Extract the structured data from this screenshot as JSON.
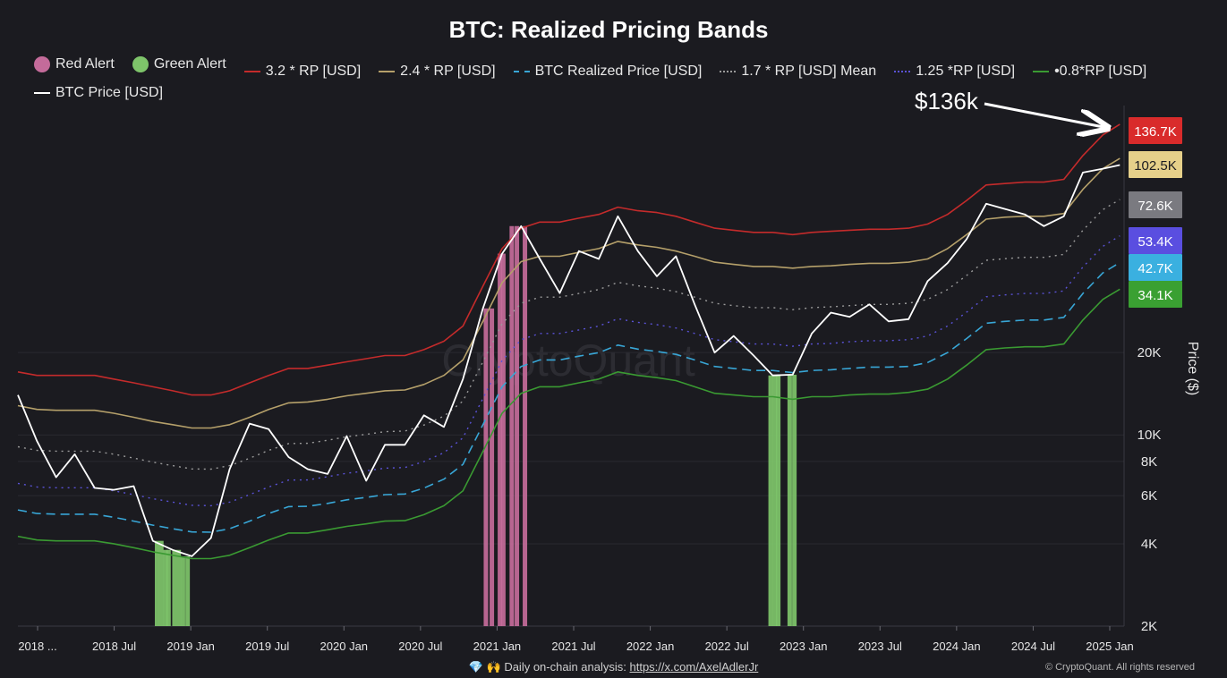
{
  "colors": {
    "background": "#1b1b20",
    "red_alert": "#c46b9a",
    "green_alert": "#7ec46a",
    "band_32": "#c42b2b",
    "band_24": "#b5a06a",
    "realized": "#38a6d6",
    "mean": "#9a9a9a",
    "band_125": "#5a52d6",
    "band_08": "#3a9a32",
    "price": "#ffffff"
  },
  "chart_data": {
    "type": "line",
    "title": "BTC: Realized Pricing Bands",
    "ylabel": "Price ($)",
    "y_scale": "log",
    "ylim": [
      2000,
      160000
    ],
    "xlim": [
      "2018-01-01",
      "2025-02-20"
    ],
    "x_tick_labels": [
      "2018 ...",
      "2018 Jul",
      "2019 Jan",
      "2019 Jul",
      "2020 Jan",
      "2020 Jul",
      "2021 Jan",
      "2021 Jul",
      "2022 Jan",
      "2022 Jul",
      "2023 Jan",
      "2023 Jul",
      "2024 Jan",
      "2024 Jul",
      "2025 Jan"
    ],
    "y_ticks": [
      {
        "label": "2K",
        "value": 2000
      },
      {
        "label": "4K",
        "value": 4000
      },
      {
        "label": "6K",
        "value": 6000
      },
      {
        "label": "8K",
        "value": 8000
      },
      {
        "label": "10K",
        "value": 10000
      },
      {
        "label": "20K",
        "value": 20000
      }
    ],
    "legend_position": "top",
    "legend": [
      {
        "name": "Red Alert",
        "kind": "dot",
        "color": "#c46b9a"
      },
      {
        "name": "Green Alert",
        "kind": "dot",
        "color": "#7ec46a"
      },
      {
        "name": "3.2 * RP [USD]",
        "kind": "line",
        "color": "#c42b2b"
      },
      {
        "name": "2.4 * RP [USD]",
        "kind": "line",
        "color": "#b5a06a"
      },
      {
        "name": "BTC Realized Price [USD]",
        "kind": "dashed",
        "color": "#38a6d6"
      },
      {
        "name": "1.7 * RP [USD] Mean",
        "kind": "dotted",
        "color": "#9a9a9a"
      },
      {
        "name": "1.25 *RP [USD]",
        "kind": "dotted",
        "color": "#5a52d6"
      },
      {
        "name": "•0.8*RP [USD]",
        "kind": "line",
        "color": "#3a9a32"
      },
      {
        "name": "BTC Price [USD]",
        "kind": "line",
        "color": "#ffffff"
      }
    ],
    "x": [
      "2018-01-01",
      "2018-02-15",
      "2018-04-01",
      "2018-05-15",
      "2018-07-01",
      "2018-08-15",
      "2018-10-01",
      "2018-11-15",
      "2019-01-01",
      "2019-02-15",
      "2019-04-01",
      "2019-05-15",
      "2019-07-01",
      "2019-08-15",
      "2019-10-01",
      "2019-11-15",
      "2020-01-01",
      "2020-02-15",
      "2020-04-01",
      "2020-05-15",
      "2020-07-01",
      "2020-08-15",
      "2020-10-01",
      "2020-11-15",
      "2021-01-01",
      "2021-02-15",
      "2021-04-01",
      "2021-05-15",
      "2021-07-01",
      "2021-08-15",
      "2021-10-01",
      "2021-11-15",
      "2022-01-01",
      "2022-02-15",
      "2022-04-01",
      "2022-05-15",
      "2022-07-01",
      "2022-08-15",
      "2022-10-01",
      "2022-11-15",
      "2023-01-01",
      "2023-02-15",
      "2023-04-01",
      "2023-05-15",
      "2023-07-01",
      "2023-08-15",
      "2023-10-01",
      "2023-11-15",
      "2024-01-01",
      "2024-02-15",
      "2024-04-01",
      "2024-05-15",
      "2024-07-01",
      "2024-08-15",
      "2024-10-01",
      "2024-11-15",
      "2025-01-01",
      "2025-02-10"
    ],
    "series": [
      {
        "name": "BTC Price [USD]",
        "color": "#ffffff",
        "style": "solid",
        "width": 1.8,
        "values": [
          14000,
          9500,
          7000,
          8500,
          6400,
          6300,
          6500,
          4100,
          3800,
          3600,
          4200,
          7500,
          11000,
          10500,
          8300,
          7500,
          7200,
          9900,
          6800,
          9200,
          9200,
          11800,
          10700,
          16000,
          29000,
          46000,
          58000,
          44000,
          33000,
          47000,
          44000,
          63000,
          47000,
          38000,
          45000,
          30000,
          20000,
          23000,
          19500,
          16500,
          16600,
          23500,
          28000,
          27000,
          30000,
          26000,
          26500,
          36500,
          42500,
          52000,
          70000,
          67000,
          64000,
          58000,
          63000,
          91000,
          94000,
          97000
        ]
      },
      {
        "name": "3.2 * RP [USD]",
        "color": "#c42b2b",
        "style": "solid",
        "width": 1.6,
        "values": [
          17000,
          16500,
          16500,
          16500,
          16500,
          16000,
          15500,
          15000,
          14500,
          14000,
          14000,
          14500,
          15500,
          16500,
          17500,
          17500,
          18000,
          18500,
          19000,
          19500,
          19500,
          20500,
          22000,
          25000,
          35000,
          48000,
          57000,
          60000,
          60000,
          62000,
          64000,
          68000,
          66000,
          65000,
          63000,
          60000,
          57000,
          56000,
          55000,
          55000,
          54000,
          55000,
          55500,
          56000,
          56500,
          56500,
          57000,
          59000,
          64000,
          72000,
          82000,
          83000,
          84000,
          84000,
          86000,
          105000,
          125000,
          136700
        ]
      },
      {
        "name": "2.4 * RP [USD]",
        "color": "#b5a06a",
        "style": "solid",
        "width": 1.6,
        "values": [
          12800,
          12400,
          12300,
          12300,
          12300,
          12000,
          11600,
          11200,
          10900,
          10600,
          10600,
          10900,
          11600,
          12400,
          13100,
          13200,
          13500,
          13900,
          14200,
          14500,
          14600,
          15300,
          16500,
          18800,
          26000,
          36000,
          43000,
          45000,
          45000,
          46500,
          48000,
          51000,
          49500,
          48500,
          47000,
          45000,
          42800,
          42000,
          41300,
          41300,
          40700,
          41300,
          41500,
          42000,
          42400,
          42400,
          42800,
          44000,
          48000,
          54000,
          61500,
          62500,
          63000,
          63000,
          64500,
          79000,
          94000,
          102500
        ]
      },
      {
        "name": "1.7 * RP [USD] Mean",
        "color": "#9a9a9a",
        "style": "dotted",
        "width": 1.4,
        "values": [
          9050,
          8780,
          8720,
          8720,
          8720,
          8500,
          8230,
          7950,
          7720,
          7510,
          7500,
          7720,
          8220,
          8780,
          9300,
          9320,
          9560,
          9850,
          10050,
          10280,
          10330,
          10870,
          11720,
          13300,
          18500,
          25500,
          30300,
          31900,
          31900,
          32900,
          34000,
          36100,
          35100,
          34400,
          33400,
          31900,
          30300,
          29700,
          29200,
          29200,
          28700,
          29200,
          29400,
          29700,
          30000,
          30000,
          30300,
          31300,
          34000,
          38300,
          43500,
          44100,
          44600,
          44600,
          45700,
          56000,
          66600,
          72600
        ]
      },
      {
        "name": "BTC Realized Price [USD]",
        "color": "#38a6d6",
        "style": "dashed",
        "width": 1.6,
        "values": [
          5320,
          5160,
          5130,
          5130,
          5130,
          5000,
          4840,
          4680,
          4540,
          4420,
          4410,
          4540,
          4840,
          5160,
          5470,
          5480,
          5620,
          5790,
          5910,
          6050,
          6080,
          6390,
          6890,
          7810,
          10900,
          15000,
          17800,
          18800,
          18800,
          19400,
          20000,
          21300,
          20600,
          20200,
          19700,
          18800,
          17800,
          17500,
          17200,
          17200,
          16900,
          17200,
          17300,
          17500,
          17700,
          17700,
          17800,
          18400,
          20000,
          22500,
          25600,
          26000,
          26300,
          26300,
          26900,
          32900,
          39100,
          42700
        ]
      },
      {
        "name": "1.25 *RP [USD]",
        "color": "#5a52d6",
        "style": "dotted",
        "width": 1.4,
        "values": [
          6650,
          6450,
          6410,
          6410,
          6410,
          6250,
          6050,
          5850,
          5680,
          5530,
          5510,
          5680,
          6050,
          6450,
          6840,
          6850,
          7030,
          7240,
          7390,
          7560,
          7600,
          7990,
          8610,
          9760,
          13600,
          18700,
          22300,
          23500,
          23500,
          24200,
          25000,
          26600,
          25800,
          25300,
          24600,
          23500,
          22300,
          21900,
          21500,
          21500,
          21100,
          21500,
          21600,
          21900,
          22100,
          22100,
          22300,
          23000,
          25000,
          28100,
          32000,
          32500,
          32900,
          32900,
          33600,
          41100,
          48900,
          53400
        ]
      },
      {
        "name": "•0.8*RP [USD]",
        "color": "#3a9a32",
        "style": "solid",
        "width": 1.6,
        "values": [
          4260,
          4130,
          4100,
          4100,
          4100,
          4000,
          3870,
          3740,
          3630,
          3530,
          3530,
          3630,
          3870,
          4130,
          4380,
          4380,
          4500,
          4630,
          4730,
          4840,
          4860,
          5110,
          5510,
          6250,
          8700,
          12000,
          14200,
          15000,
          15000,
          15500,
          16000,
          17000,
          16500,
          16200,
          15800,
          15000,
          14200,
          14000,
          13800,
          13800,
          13500,
          13800,
          13800,
          14000,
          14100,
          14100,
          14300,
          14700,
          16000,
          18000,
          20500,
          20800,
          21000,
          21000,
          21500,
          26300,
          31300,
          34100
        ]
      }
    ],
    "alert_bars": [
      {
        "type": "Red Alert",
        "color": "#c46b9a",
        "dates": [
          "2021-01-08",
          "2021-01-22",
          "2021-02-10",
          "2021-02-18",
          "2021-03-10",
          "2021-03-22",
          "2021-04-10"
        ]
      },
      {
        "type": "Green Alert",
        "color": "#7ec46a",
        "dates": [
          "2018-11-25",
          "2018-12-05",
          "2018-12-15",
          "2018-12-22",
          "2019-01-05",
          "2019-01-15",
          "2019-01-25",
          "2019-02-05",
          "2022-11-10",
          "2022-11-20",
          "2022-11-28",
          "2022-12-25",
          "2023-01-05"
        ]
      }
    ],
    "badges": [
      {
        "label": "136.7K",
        "value": 136700,
        "color": "#d92b2b",
        "text_color": "#ffffff"
      },
      {
        "label": "102.5K",
        "value": 102500,
        "color": "#e6d08a",
        "text_color": "#1b1b20"
      },
      {
        "label": "72.6K",
        "value": 72600,
        "color": "#7a7a80",
        "text_color": "#ffffff"
      },
      {
        "label": "53.4K",
        "value": 53400,
        "color": "#5a4ee0",
        "text_color": "#ffffff"
      },
      {
        "label": "42.7K",
        "value": 42700,
        "color": "#3ab0e0",
        "text_color": "#ffffff"
      },
      {
        "label": "34.1K",
        "value": 34100,
        "color": "#3aa032",
        "text_color": "#ffffff"
      }
    ],
    "annotation": "$136k",
    "watermark": "CryptoQuant"
  },
  "footer": {
    "prefix": "💎 🙌 Daily on-chain analysis: ",
    "link": "https://x.com/AxelAdlerJr",
    "copyright": "© CryptoQuant. All rights reserved"
  }
}
